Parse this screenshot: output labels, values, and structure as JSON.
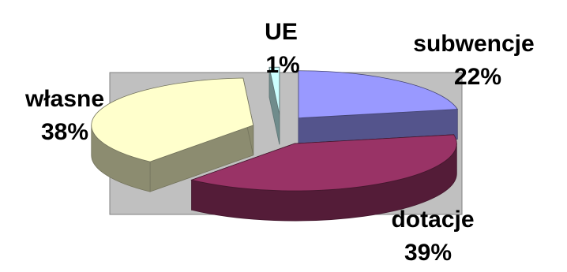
{
  "chart_data": {
    "type": "pie",
    "three_d": true,
    "exploded": true,
    "slices": [
      {
        "name": "subwencje",
        "percent_label": "22%",
        "value": 22,
        "color": "#9999ff"
      },
      {
        "name": "dotacje",
        "percent_label": "39%",
        "value": 39,
        "color": "#993366"
      },
      {
        "name": "własne",
        "percent_label": "38%",
        "value": 38,
        "color": "#ffffcc"
      },
      {
        "name": "UE",
        "percent_label": "1%",
        "value": 1,
        "color": "#ccffff"
      }
    ],
    "plot_area_fill": "#c0c0c0",
    "legend": "none"
  }
}
